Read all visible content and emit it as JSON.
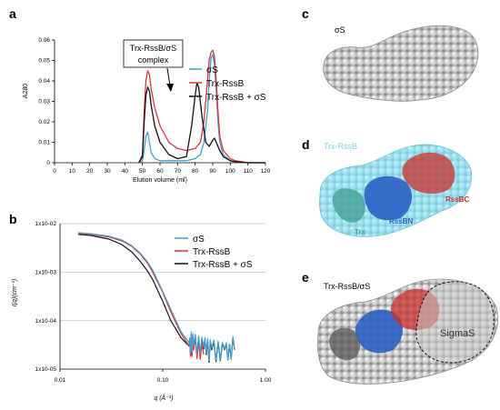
{
  "panels": {
    "a": {
      "letter": "a",
      "ylabel": "A280",
      "xlabel": "Elution volume (ml)",
      "annotation_line1": "Trx-RssB/σS",
      "annotation_line2": "complex",
      "legend": [
        "σS",
        "Trx-RssB",
        "Trx-RssB + σS"
      ]
    },
    "b": {
      "letter": "b",
      "ylabel": "I(q)(cm⁻¹)",
      "xlabel": "q (Å⁻¹)",
      "legend": [
        "σS",
        "Trx-RssB",
        "Trx-RssB + σS"
      ]
    },
    "c": {
      "letter": "c",
      "label": "σS"
    },
    "d": {
      "letter": "d",
      "label": "Trx-RssB",
      "rssbc": "RssBC",
      "rssbn": "RssBN",
      "trx": "Trx"
    },
    "e": {
      "letter": "e",
      "label": "Trx-RssB/σS",
      "sigmas": "SigmaS"
    }
  },
  "colors": {
    "sigma": "#3d9fd3",
    "trx_rssb": "#e0332e",
    "complex": "#111111",
    "cyan": "#8fdcea",
    "blue": "#2b61c4",
    "red": "#c9302c",
    "teal": "#4aa39b"
  },
  "chart_data": [
    {
      "type": "line",
      "title": "",
      "xlabel": "Elution volume (ml)",
      "ylabel": "A280",
      "xlim": [
        0,
        120
      ],
      "ylim": [
        0,
        0.06
      ],
      "xticks": [
        "0",
        "10",
        "20",
        "30",
        "40",
        "50",
        "60",
        "70",
        "80",
        "90",
        "100",
        "110",
        "120"
      ],
      "yticks": [
        "0",
        "0.01",
        "0.02",
        "0.03",
        "0.04",
        "0.05",
        "0.06"
      ],
      "grid": false,
      "legend_position": "top-right",
      "series": [
        {
          "name": "σS",
          "x": [
            48,
            50,
            51,
            52,
            53,
            54,
            55,
            57,
            60,
            65,
            70,
            75,
            80,
            83,
            85,
            87,
            88,
            89,
            90,
            91,
            92,
            93,
            94,
            96,
            100,
            103,
            110,
            120
          ],
          "y": [
            0,
            0.001,
            0.006,
            0.013,
            0.015,
            0.01,
            0.005,
            0.002,
            0.001,
            0.001,
            0.001,
            0.001,
            0.002,
            0.004,
            0.01,
            0.025,
            0.04,
            0.051,
            0.053,
            0.048,
            0.035,
            0.02,
            0.01,
            0.004,
            0.001,
            0.0005,
            0,
            0
          ]
        },
        {
          "name": "Trx-RssB",
          "x": [
            48,
            50,
            51,
            52,
            53,
            54,
            55,
            57,
            60,
            65,
            70,
            75,
            80,
            83,
            85,
            87,
            88,
            89,
            90,
            91,
            92,
            93,
            94,
            96,
            100,
            103,
            110,
            120
          ],
          "y": [
            0,
            0.004,
            0.025,
            0.04,
            0.045,
            0.043,
            0.036,
            0.027,
            0.018,
            0.01,
            0.007,
            0.006,
            0.007,
            0.01,
            0.02,
            0.04,
            0.05,
            0.054,
            0.055,
            0.052,
            0.04,
            0.025,
            0.013,
            0.006,
            0.002,
            0.001,
            0,
            0
          ]
        },
        {
          "name": "Trx-RssB + σS",
          "x": [
            48,
            50,
            51,
            52,
            53,
            54,
            55,
            57,
            60,
            65,
            70,
            75,
            78,
            80,
            81,
            82,
            84,
            86,
            88,
            90,
            91,
            92,
            94,
            96,
            100,
            103,
            110,
            120
          ],
          "y": [
            0,
            0.003,
            0.02,
            0.033,
            0.037,
            0.035,
            0.028,
            0.018,
            0.01,
            0.004,
            0.002,
            0.003,
            0.018,
            0.033,
            0.039,
            0.037,
            0.022,
            0.01,
            0.008,
            0.011,
            0.012,
            0.01,
            0.006,
            0.003,
            0.001,
            0.0005,
            0,
            0
          ]
        }
      ]
    },
    {
      "type": "line",
      "title": "",
      "xlabel": "q (Å⁻¹)",
      "ylabel": "I(q)(cm⁻¹)",
      "x_scale": "log",
      "y_scale": "log",
      "xlim": [
        0.01,
        1.0
      ],
      "ylim": [
        1e-05,
        0.01
      ],
      "xticks": [
        "0.01",
        "0.10",
        "1.00"
      ],
      "yticks": [
        "1x10-05",
        "1x10-04",
        "1x10-03",
        "1x10-02"
      ],
      "grid": true,
      "legend_position": "top-right",
      "series": [
        {
          "name": "σS",
          "x": [
            0.015,
            0.02,
            0.03,
            0.04,
            0.05,
            0.06,
            0.07,
            0.08,
            0.1,
            0.12,
            0.15,
            0.18,
            0.2,
            0.25,
            0.3,
            0.4,
            0.5
          ],
          "y": [
            0.0065,
            0.0062,
            0.0055,
            0.0046,
            0.0035,
            0.0025,
            0.0017,
            0.0011,
            0.0004,
            0.00017,
            6e-05,
            3.5e-05,
            3e-05,
            2.8e-05,
            2.7e-05,
            2.6e-05,
            2.5e-05
          ]
        },
        {
          "name": "Trx-RssB",
          "x": [
            0.015,
            0.02,
            0.03,
            0.04,
            0.05,
            0.06,
            0.07,
            0.08,
            0.1,
            0.12,
            0.15,
            0.18,
            0.2,
            0.25
          ],
          "y": [
            0.0063,
            0.006,
            0.0053,
            0.0044,
            0.0034,
            0.0024,
            0.0016,
            0.001,
            0.00038,
            0.00015,
            5.5e-05,
            3e-05,
            2.5e-05,
            2e-05
          ]
        },
        {
          "name": "Trx-RssB + σS",
          "x": [
            0.015,
            0.02,
            0.03,
            0.04,
            0.05,
            0.06,
            0.07,
            0.08,
            0.1,
            0.12,
            0.15,
            0.18,
            0.2,
            0.25,
            0.3,
            0.4,
            0.5
          ],
          "y": [
            0.006,
            0.0057,
            0.0048,
            0.0037,
            0.0026,
            0.0017,
            0.0011,
            0.0007,
            0.00025,
            0.0001,
            4.5e-05,
            3e-05,
            2.8e-05,
            2.6e-05,
            2.5e-05,
            2.5e-05,
            2.5e-05
          ]
        }
      ]
    }
  ]
}
